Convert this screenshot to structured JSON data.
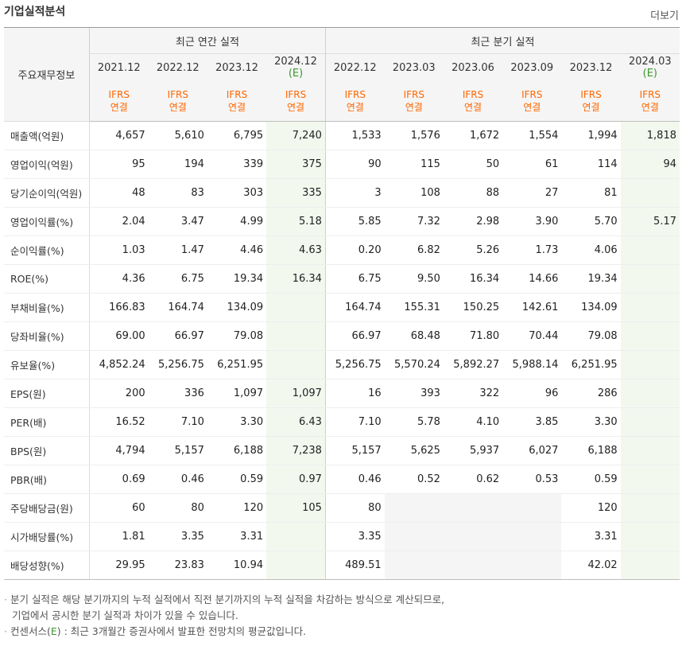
{
  "header": {
    "title": "기업실적분석",
    "more_label": "더보기"
  },
  "table": {
    "corner_label": "주요재무정보",
    "group_annual": "최근 연간 실적",
    "group_quarter": "최근 분기 실적",
    "annual_periods": [
      {
        "period": "2021.12",
        "est": ""
      },
      {
        "period": "2022.12",
        "est": ""
      },
      {
        "period": "2023.12",
        "est": ""
      },
      {
        "period": "2024.12",
        "est": "(E)"
      }
    ],
    "quarter_periods": [
      {
        "period": "2022.12",
        "est": ""
      },
      {
        "period": "2023.03",
        "est": ""
      },
      {
        "period": "2023.06",
        "est": ""
      },
      {
        "period": "2023.09",
        "est": ""
      },
      {
        "period": "2023.12",
        "est": ""
      },
      {
        "period": "2024.03",
        "est": "(E)"
      }
    ],
    "standard_line1": "IFRS",
    "standard_line2": "연결",
    "rows": [
      {
        "label": "매출액(억원)",
        "grp": true,
        "values": [
          "4,657",
          "5,610",
          "6,795",
          "7,240",
          "1,533",
          "1,576",
          "1,672",
          "1,554",
          "1,994",
          "1,818"
        ]
      },
      {
        "label": "영업이익(억원)",
        "grp": false,
        "values": [
          "95",
          "194",
          "339",
          "375",
          "90",
          "115",
          "50",
          "61",
          "114",
          "94"
        ]
      },
      {
        "label": "당기순이익(억원)",
        "grp": false,
        "values": [
          "48",
          "83",
          "303",
          "335",
          "3",
          "108",
          "88",
          "27",
          "81",
          ""
        ]
      },
      {
        "label": "영업이익률(%)",
        "grp": true,
        "values": [
          "2.04",
          "3.47",
          "4.99",
          "5.18",
          "5.85",
          "7.32",
          "2.98",
          "3.90",
          "5.70",
          "5.17"
        ]
      },
      {
        "label": "순이익률(%)",
        "grp": false,
        "values": [
          "1.03",
          "1.47",
          "4.46",
          "4.63",
          "0.20",
          "6.82",
          "5.26",
          "1.73",
          "4.06",
          ""
        ]
      },
      {
        "label": "ROE(%)",
        "grp": false,
        "values": [
          "4.36",
          "6.75",
          "19.34",
          "16.34",
          "6.75",
          "9.50",
          "16.34",
          "14.66",
          "19.34",
          ""
        ]
      },
      {
        "label": "부채비율(%)",
        "grp": true,
        "values": [
          "166.83",
          "164.74",
          "134.09",
          "",
          "164.74",
          "155.31",
          "150.25",
          "142.61",
          "134.09",
          ""
        ]
      },
      {
        "label": "당좌비율(%)",
        "grp": false,
        "values": [
          "69.00",
          "66.97",
          "79.08",
          "",
          "66.97",
          "68.48",
          "71.80",
          "70.44",
          "79.08",
          ""
        ]
      },
      {
        "label": "유보율(%)",
        "grp": false,
        "values": [
          "4,852.24",
          "5,256.75",
          "6,251.95",
          "",
          "5,256.75",
          "5,570.24",
          "5,892.27",
          "5,988.14",
          "6,251.95",
          ""
        ]
      },
      {
        "label": "EPS(원)",
        "grp": true,
        "values": [
          "200",
          "336",
          "1,097",
          "1,097",
          "16",
          "393",
          "322",
          "96",
          "286",
          ""
        ]
      },
      {
        "label": "PER(배)",
        "grp": false,
        "values": [
          "16.52",
          "7.10",
          "3.30",
          "6.43",
          "7.10",
          "5.78",
          "4.10",
          "3.85",
          "3.30",
          ""
        ]
      },
      {
        "label": "BPS(원)",
        "grp": false,
        "values": [
          "4,794",
          "5,157",
          "6,188",
          "7,238",
          "5,157",
          "5,625",
          "5,937",
          "6,027",
          "6,188",
          ""
        ]
      },
      {
        "label": "PBR(배)",
        "grp": false,
        "values": [
          "0.69",
          "0.46",
          "0.59",
          "0.97",
          "0.46",
          "0.52",
          "0.62",
          "0.53",
          "0.59",
          ""
        ]
      },
      {
        "label": "주당배당금(원)",
        "grp": true,
        "values": [
          "60",
          "80",
          "120",
          "105",
          "80",
          "",
          "",
          "",
          "120",
          ""
        ],
        "empty": [
          5,
          6,
          7
        ]
      },
      {
        "label": "시가배당률(%)",
        "grp": false,
        "values": [
          "1.81",
          "3.35",
          "3.31",
          "",
          "3.35",
          "",
          "",
          "",
          "3.31",
          ""
        ],
        "empty": [
          5,
          6,
          7
        ]
      },
      {
        "label": "배당성향(%)",
        "grp": false,
        "values": [
          "29.95",
          "23.83",
          "10.94",
          "",
          "489.51",
          "",
          "",
          "",
          "42.02",
          ""
        ],
        "empty": [
          5,
          6,
          7
        ]
      }
    ]
  },
  "notes": {
    "bullet": "·",
    "line1": "분기 실적은 해당 분기까지의 누적 실적에서 직전 분기까지의 누적 실적을 차감하는 방식으로 계산되므로,",
    "line2": "기업에서 공시한 분기 실적과 차이가 있을 수 있습니다.",
    "line3_prefix": "컨센서스(",
    "line3_mark": "E",
    "line3_suffix": ") : 최근 3개월간 증권사에서 발표한 전망치의 평균값입니다."
  },
  "colors": {
    "accent_orange": "#ff6600",
    "estimate_green": "#3a9a2a",
    "estimate_bg": "#f2f8ee"
  }
}
